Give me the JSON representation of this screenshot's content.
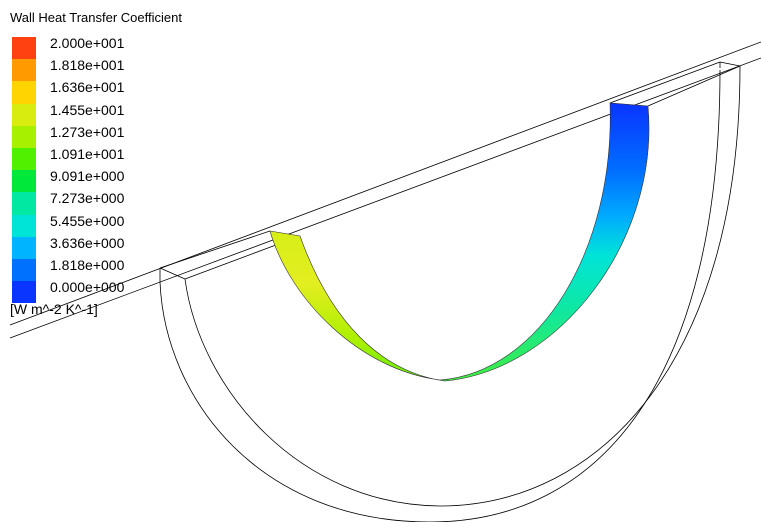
{
  "title": "Wall Heat Transfer Coefficient",
  "legend": {
    "ticks": [
      "2.000e+001",
      "1.818e+001",
      "1.636e+001",
      "1.455e+001",
      "1.273e+001",
      "1.091e+001",
      "9.091e+000",
      "7.273e+000",
      "5.455e+000",
      "3.636e+000",
      "1.818e+000",
      "0.000e+000"
    ],
    "colors": [
      "#ff4010",
      "#ff9a00",
      "#ffd400",
      "#d9ec10",
      "#a6f000",
      "#50f000",
      "#00e83a",
      "#00e8a2",
      "#00e4d8",
      "#00b4ff",
      "#0070ff",
      "#0a34ff"
    ],
    "units": "[W m^-2 K^-1]"
  }
}
